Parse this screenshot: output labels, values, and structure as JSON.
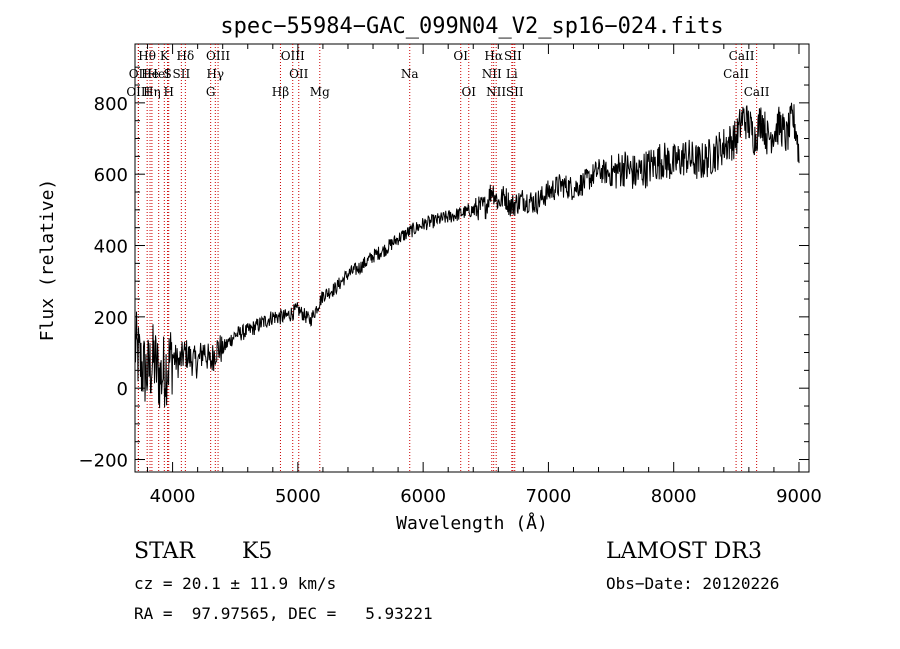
{
  "chart_data": {
    "type": "line",
    "title": "spec−55984−GAC_099N04_V2_sp16−024.fits",
    "xlabel": "Wavelength (Å)",
    "ylabel": "Flux (relative)",
    "xlim": [
      3700,
      9080
    ],
    "ylim": [
      -235,
      965
    ],
    "xticks": [
      4000,
      5000,
      6000,
      7000,
      8000,
      9000
    ],
    "xtick_labels": [
      "4000",
      "5000",
      "6000",
      "7000",
      "8000",
      "9000"
    ],
    "yticks": [
      -200,
      0,
      200,
      400,
      600,
      800
    ],
    "ytick_labels": [
      "−200",
      "0",
      "200",
      "400",
      "600",
      "800"
    ],
    "grid": false,
    "line_color": "#000000",
    "marker_color": "#cc0000",
    "series": [
      {
        "name": "flux",
        "x": [
          3700,
          3750,
          3800,
          3850,
          3900,
          3950,
          4000,
          4050,
          4100,
          4150,
          4200,
          4250,
          4300,
          4350,
          4400,
          4500,
          4600,
          4700,
          4800,
          4900,
          5000,
          5100,
          5200,
          5300,
          5400,
          5500,
          5600,
          5700,
          5800,
          5900,
          6000,
          6100,
          6200,
          6300,
          6400,
          6500,
          6550,
          6600,
          6650,
          6700,
          6800,
          6900,
          7000,
          7100,
          7200,
          7300,
          7400,
          7500,
          7600,
          7700,
          7800,
          7900,
          8000,
          8100,
          8200,
          8300,
          8400,
          8500,
          8550,
          8600,
          8650,
          8700,
          8750,
          8800,
          8850,
          8900,
          8950,
          8980,
          9000
        ],
        "values": [
          120,
          60,
          40,
          80,
          30,
          60,
          90,
          70,
          100,
          80,
          70,
          110,
          70,
          110,
          110,
          150,
          160,
          180,
          200,
          200,
          220,
          190,
          260,
          280,
          320,
          340,
          370,
          390,
          420,
          440,
          460,
          470,
          480,
          490,
          500,
          510,
          560,
          520,
          540,
          510,
          530,
          520,
          550,
          570,
          560,
          580,
          610,
          600,
          620,
          600,
          620,
          640,
          630,
          650,
          630,
          650,
          680,
          700,
          760,
          740,
          700,
          760,
          700,
          720,
          740,
          700,
          760,
          720,
          650
        ]
      }
    ],
    "lines": [
      {
        "name": "Hθ",
        "x": 3797,
        "row": 0
      },
      {
        "name": "OII",
        "x": 3727,
        "row": 1
      },
      {
        "name": "OIII",
        "x": 3727,
        "row": 2
      },
      {
        "name": "He",
        "x": 3820,
        "row": 1
      },
      {
        "name": "Hη",
        "x": 3835,
        "row": 2
      },
      {
        "name": "HeI",
        "x": 3889,
        "row": 1
      },
      {
        "name": "K",
        "x": 3934,
        "row": 0
      },
      {
        "name": "S",
        "x": 3960,
        "row": 1
      },
      {
        "name": "H",
        "x": 3969,
        "row": 2
      },
      {
        "name": "Hδ",
        "x": 4102,
        "row": 0
      },
      {
        "name": "SII",
        "x": 4070,
        "row": 1
      },
      {
        "name": "OIII",
        "x": 4363,
        "row": 0
      },
      {
        "name": "Hγ",
        "x": 4341,
        "row": 1
      },
      {
        "name": "G",
        "x": 4304,
        "row": 2
      },
      {
        "name": "Hβ",
        "x": 4861,
        "row": 2
      },
      {
        "name": "OIII",
        "x": 4959,
        "row": 0
      },
      {
        "name": "OII",
        "x": 5007,
        "row": 1
      },
      {
        "name": "Mg",
        "x": 5175,
        "row": 2
      },
      {
        "name": "Na",
        "x": 5893,
        "row": 1
      },
      {
        "name": "OI",
        "x": 6300,
        "row": 0
      },
      {
        "name": "OI",
        "x": 6364,
        "row": 2
      },
      {
        "name": "Hα",
        "x": 6563,
        "row": 0
      },
      {
        "name": "NII",
        "x": 6548,
        "row": 1
      },
      {
        "name": "NII",
        "x": 6583,
        "row": 2
      },
      {
        "name": "SII",
        "x": 6716,
        "row": 0
      },
      {
        "name": "Li",
        "x": 6708,
        "row": 1
      },
      {
        "name": "SII",
        "x": 6731,
        "row": 2
      },
      {
        "name": "CaII",
        "x": 8542,
        "row": 0
      },
      {
        "name": "CaII",
        "x": 8498,
        "row": 1
      },
      {
        "name": "CaII",
        "x": 8662,
        "row": 2
      }
    ]
  },
  "info": {
    "object_class": "STAR",
    "subclass": "K5",
    "survey": "LAMOST DR3",
    "cz": "cz = 20.1 ± 11.9 km/s",
    "obs_date": "Obs−Date: 20120226",
    "coords": "RA =  97.97565, DEC =   5.93221"
  }
}
